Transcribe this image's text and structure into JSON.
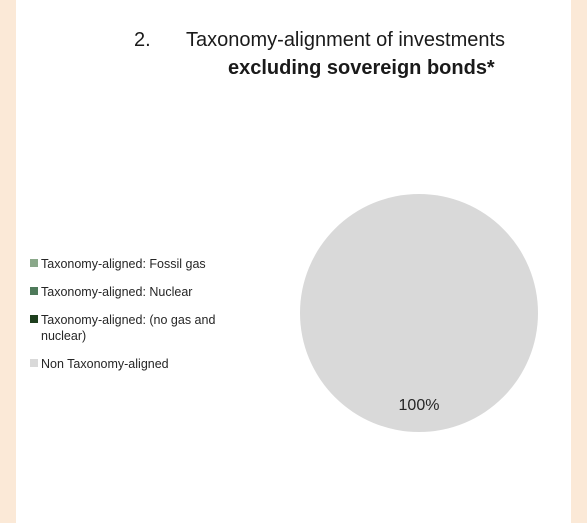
{
  "title": {
    "number": "2.",
    "line1": "Taxonomy-alignment of investments",
    "line2": "excluding sovereign bonds*"
  },
  "chart_data": {
    "type": "pie",
    "title": "Taxonomy-alignment of investments excluding sovereign bonds*",
    "slices": [
      {
        "label": "Taxonomy-aligned: Fossil gas",
        "value": 0,
        "color": "#8aa88a"
      },
      {
        "label": "Taxonomy-aligned: Nuclear",
        "value": 0,
        "color": "#4e7a5a"
      },
      {
        "label": "Taxonomy-aligned: (no gas and nuclear)",
        "value": 0,
        "color": "#1e3f1e"
      },
      {
        "label": "Non Taxonomy-aligned",
        "value": 100,
        "color": "#d9d9d9"
      }
    ],
    "data_labels": [
      "100%"
    ],
    "legend_position": "left"
  }
}
